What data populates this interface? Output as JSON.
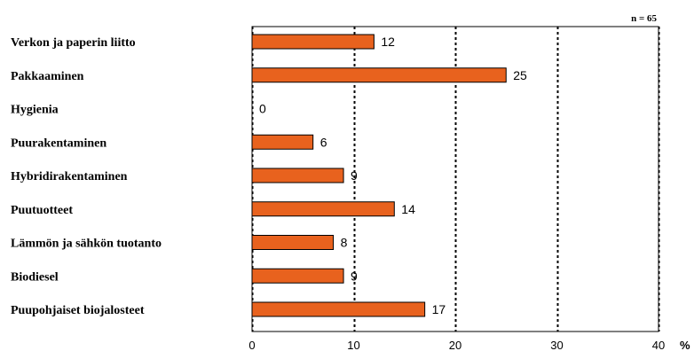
{
  "chart_data": {
    "type": "bar",
    "orientation": "horizontal",
    "categories": [
      "Verkon ja paperin liitto",
      "Pakkaaminen",
      "Hygienia",
      "Puurakentaminen",
      "Hybridirakentaminen",
      "Puutuotteet",
      "Lämmön ja sähkön tuotanto",
      "Biodiesel",
      "Puupohjaiset biojalosteet"
    ],
    "values": [
      12,
      25,
      0,
      6,
      9,
      14,
      8,
      9,
      17
    ],
    "data_labels": [
      "12",
      "25",
      "0",
      "6",
      "9",
      "14",
      "8",
      "9",
      "17"
    ],
    "xlim": [
      0,
      40
    ],
    "xticks": [
      "0",
      "10",
      "20",
      "30",
      "40"
    ],
    "unit": "%",
    "annotation": "n = 65",
    "grid": "vertical dotted",
    "bar_color": "#e8621e",
    "bar_edge": "#000000"
  }
}
